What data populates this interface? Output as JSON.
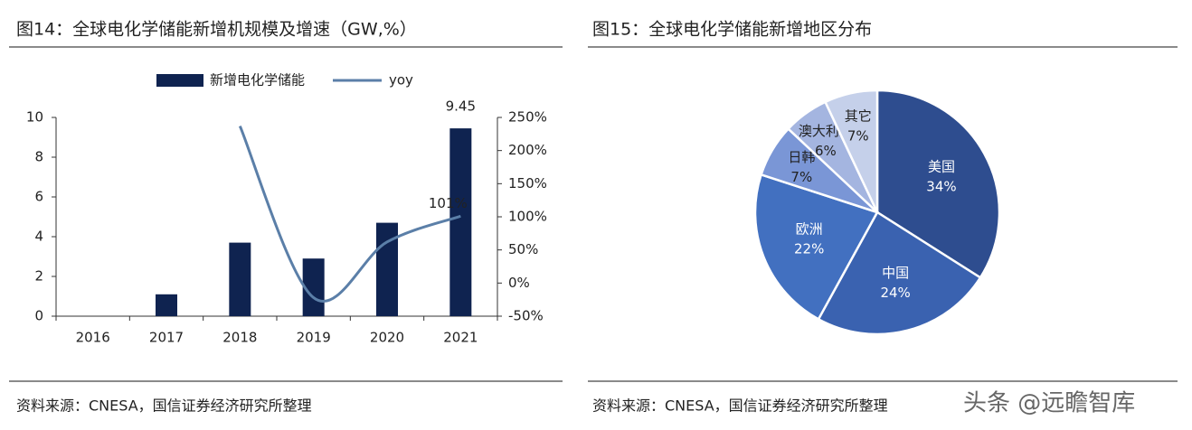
{
  "chart_data": [
    {
      "type": "combo",
      "title": "图14：全球电化学储能新增机规模及增速（GW,%）",
      "source": "资料来源：CNESA，国信证券经济研究所整理",
      "categories": [
        "2016",
        "2017",
        "2018",
        "2019",
        "2020",
        "2021"
      ],
      "series": [
        {
          "name": "新增电化学储能",
          "kind": "bar",
          "color": "#0f2350",
          "values": [
            null,
            1.1,
            3.7,
            2.9,
            4.7,
            9.45
          ]
        },
        {
          "name": "yoy",
          "kind": "line",
          "axis": "y2",
          "color": "#5b7fa8",
          "values": [
            null,
            null,
            237,
            -22,
            62,
            101
          ],
          "value_labels": [
            null,
            null,
            null,
            null,
            null,
            "101%"
          ]
        }
      ],
      "ylim": [
        0,
        10
      ],
      "yticks": [
        0,
        2,
        4,
        6,
        8,
        10
      ],
      "y2lim": [
        -50,
        250
      ],
      "y2ticks": [
        {
          "value": -50,
          "label": "-50%"
        },
        {
          "value": 0,
          "label": "0%"
        },
        {
          "value": 50,
          "label": "50%"
        },
        {
          "value": 100,
          "label": "100%"
        },
        {
          "value": 150,
          "label": "150%"
        },
        {
          "value": 200,
          "label": "200%"
        },
        {
          "value": 250,
          "label": "250%"
        }
      ],
      "legend": "top"
    },
    {
      "type": "pie",
      "title": "图15：全球电化学储能新增地区分布",
      "source": "资料来源：CNESA，国信证券经济研究所整理",
      "categories": [
        "美国",
        "中国",
        "欧洲",
        "日韩",
        "澳大利亚",
        "其它"
      ],
      "values": [
        34,
        24,
        22,
        7,
        6,
        7
      ],
      "value_labels": [
        "34%",
        "24%",
        "22%",
        "7%",
        "6%",
        "7%"
      ],
      "colors": [
        "#2e4d8f",
        "#3a62b0",
        "#4270c0",
        "#7a96d6",
        "#a4b5e0",
        "#c5d0ea"
      ],
      "watermark": "头条 @远瞻智库"
    }
  ]
}
